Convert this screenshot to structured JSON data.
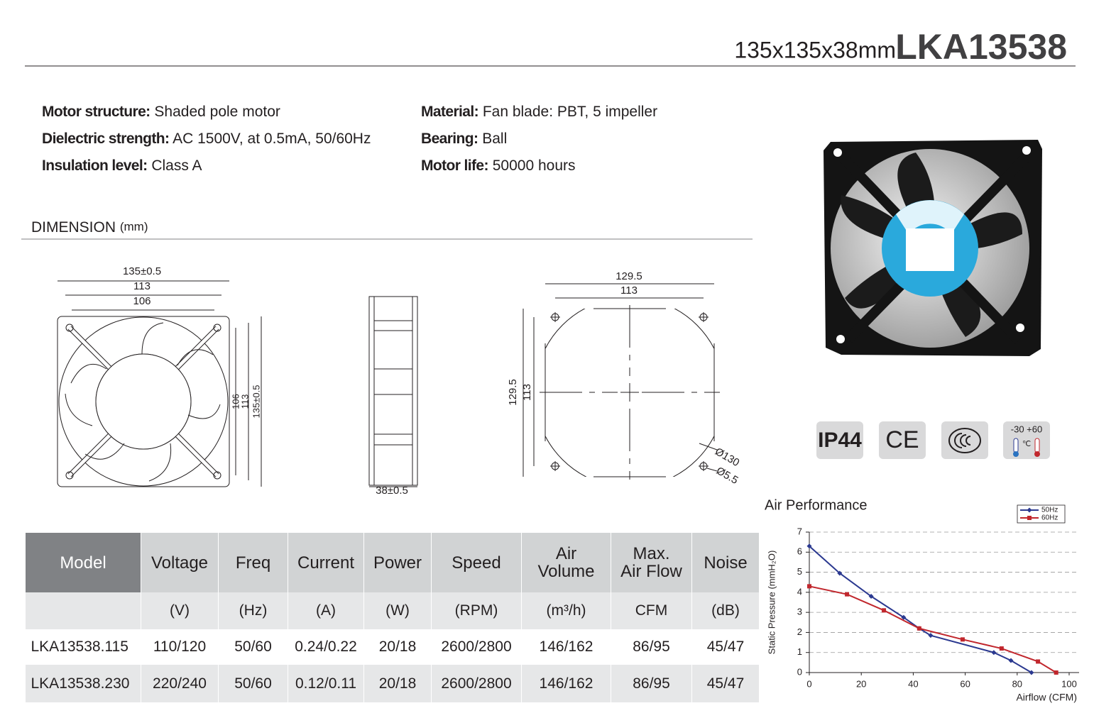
{
  "header": {
    "size": "135x135x38mm",
    "model": "LKA13538"
  },
  "specs": [
    {
      "label": "Motor structure:",
      "value": "Shaded pole motor"
    },
    {
      "label": "Dielectric strength:",
      "value": "AC 1500V, at 0.5mA, 50/60Hz"
    },
    {
      "label": "Insulation level:",
      "value": "Class A"
    },
    {
      "label": "Material:",
      "value": "Fan blade: PBT, 5 impeller"
    },
    {
      "label": "Bearing:",
      "value": "Ball"
    },
    {
      "label": "Motor life:",
      "value": "50000 hours"
    }
  ],
  "dimension": {
    "title": "DIMENSION",
    "unit": "(mm)",
    "front": {
      "width": "135±0.5",
      "hole_span": "113",
      "inner": "106",
      "v_inner": "106",
      "v_hole": "113",
      "v_height": "135±0.5"
    },
    "side": {
      "depth": "38±0.5"
    },
    "mount": {
      "width": "129.5",
      "hole_span": "113",
      "height": "129.5",
      "v_hole": "113",
      "cutout": "Ø130",
      "hole": "Ø5.5"
    }
  },
  "certifications": {
    "ip": "IP44",
    "ce": "CE",
    "temp": "-30 +60",
    "temp_unit": "℃"
  },
  "table": {
    "headers": [
      "Model",
      "Voltage",
      "Freq",
      "Current",
      "Power",
      "Speed",
      "Air\nVolume",
      "Max.\nAir Flow",
      "Noise"
    ],
    "units": [
      "(V)",
      "(Hz)",
      "(A)",
      "(W)",
      "(RPM)",
      "(m³/h)",
      "CFM",
      "(dB)"
    ],
    "rows": [
      [
        "LKA13538.115",
        "110/120",
        "50/60",
        "0.24/0.22",
        "20/18",
        "2600/2800",
        "146/162",
        "86/95",
        "45/47"
      ],
      [
        "LKA13538.230",
        "220/240",
        "50/60",
        "0.12/0.11",
        "20/18",
        "2600/2800",
        "146/162",
        "86/95",
        "45/47"
      ]
    ]
  },
  "chart_data": {
    "type": "line",
    "title": "Air Performance",
    "x_label": "Airflow (CFM)",
    "y_label": "Static Pressure (mmH₂O)",
    "xlim": [
      0,
      100
    ],
    "xticks": [
      0,
      20,
      40,
      60,
      80,
      100
    ],
    "ylim": [
      0,
      7
    ],
    "yticks": [
      0,
      1,
      2,
      3,
      4,
      5,
      6,
      7
    ],
    "grid": true,
    "legend": "top-right",
    "series": [
      {
        "name": "50Hz",
        "color": "#2b3990",
        "marker": "diamond",
        "x": [
          0,
          11.7,
          23.8,
          36.3,
          42.3,
          46.7,
          71,
          77.6,
          85.5
        ],
        "values": [
          6.3,
          4.95,
          3.8,
          2.75,
          2.2,
          1.85,
          1.0,
          0.6,
          0
        ]
      },
      {
        "name": "60Hz",
        "color": "#c1272d",
        "marker": "square",
        "x": [
          0,
          14.5,
          28.7,
          42.3,
          59,
          74,
          88,
          95
        ],
        "values": [
          4.3,
          3.9,
          3.1,
          2.2,
          1.65,
          1.2,
          0.55,
          0
        ]
      }
    ]
  }
}
